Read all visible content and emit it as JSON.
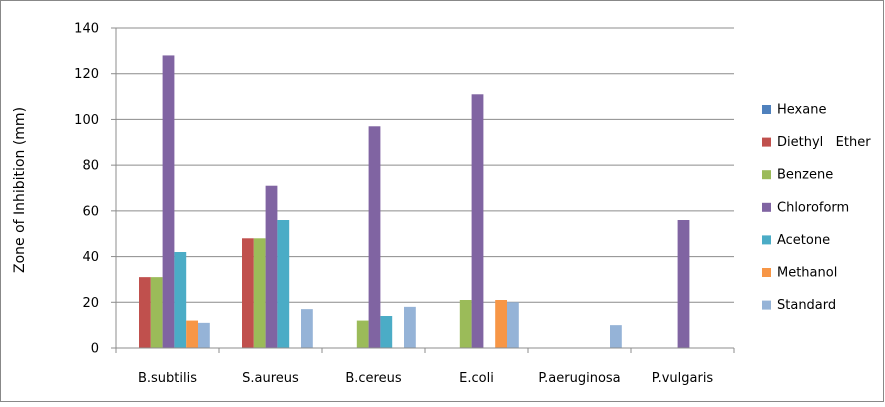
{
  "chart_data": {
    "type": "bar",
    "title": "",
    "xlabel": "",
    "ylabel": "Zone of Inhibition (mm)",
    "ylim": [
      0,
      140
    ],
    "yticks": [
      0,
      20,
      40,
      60,
      80,
      100,
      120,
      140
    ],
    "ytick_labels": [
      "0",
      "20",
      "40",
      "60",
      "80",
      "100",
      "120",
      "140"
    ],
    "grid": "horizontal",
    "legend_position": "right",
    "categories": [
      "B.subtilis",
      "S.aureus",
      "B.cereus",
      "E.coli",
      "P.aeruginosa",
      "P.vulgaris"
    ],
    "series": [
      {
        "name": "Hexane",
        "color": "#4F81BD",
        "values": [
          0,
          0,
          0,
          0,
          0,
          0
        ]
      },
      {
        "name": "Diethyl   Ether",
        "color": "#C0504D",
        "values": [
          31,
          48,
          0,
          0,
          0,
          0
        ]
      },
      {
        "name": "Benzene",
        "color": "#9BBB59",
        "values": [
          31,
          48,
          12,
          21,
          0,
          0
        ]
      },
      {
        "name": "Chloroform",
        "color": "#8064A2",
        "values": [
          128,
          71,
          97,
          111,
          0,
          56
        ]
      },
      {
        "name": "Acetone",
        "color": "#4BACC6",
        "values": [
          42,
          56,
          14,
          0,
          0,
          0
        ]
      },
      {
        "name": "Methanol",
        "color": "#F79646",
        "values": [
          12,
          0,
          0,
          21,
          0,
          0
        ]
      },
      {
        "name": "Standard",
        "color": "#95B3D7",
        "values": [
          11,
          17,
          18,
          20,
          10,
          0
        ]
      }
    ]
  }
}
